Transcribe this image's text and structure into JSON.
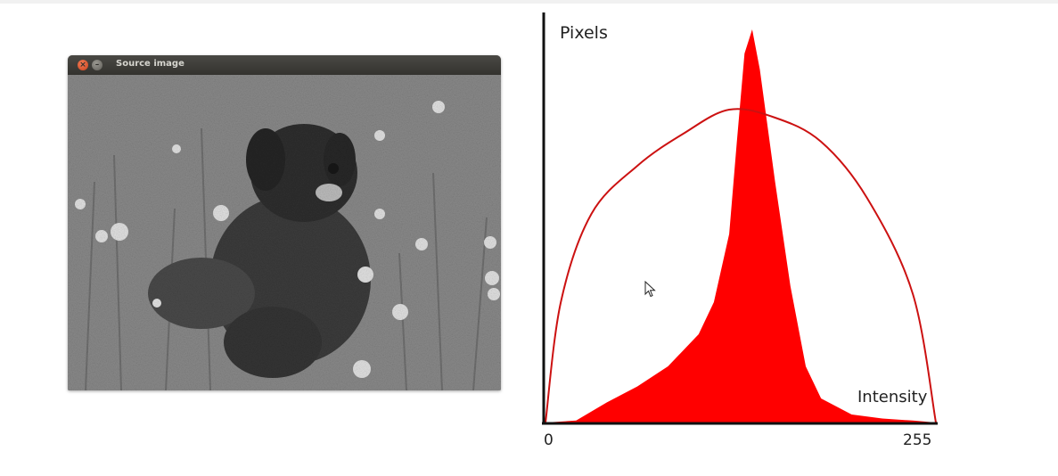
{
  "source_window": {
    "title": "Source image",
    "buttons": [
      "close-icon",
      "minimize-icon"
    ],
    "image_description_icon": "dog-photo"
  },
  "histogram": {
    "y_axis_label": "Pixels",
    "x_axis_label": "Intensity",
    "x_min_label": "0",
    "x_max_label": "255",
    "fill_color": "#ff0000",
    "curve_color": "#cc1111",
    "axis_color": "#111111"
  },
  "chart_data": {
    "type": "area",
    "xlabel": "Intensity",
    "ylabel": "Pixels",
    "xlim": [
      0,
      255
    ],
    "x": [
      0,
      20,
      40,
      60,
      80,
      100,
      110,
      120,
      125,
      130,
      135,
      140,
      150,
      160,
      170,
      180,
      200,
      220,
      240,
      255
    ],
    "series": [
      {
        "values": [
          0,
          0.5,
          5,
          9,
          14,
          22,
          30,
          47,
          70,
          92,
          98,
          88,
          60,
          34,
          14,
          6,
          2,
          1,
          0.5,
          0
        ]
      }
    ],
    "overlay_curve": {
      "x": [
        0,
        10,
        30,
        60,
        90,
        120,
        150,
        180,
        210,
        240,
        255
      ],
      "values": [
        0,
        30,
        52,
        64,
        72,
        78,
        76,
        70,
        56,
        32,
        0
      ]
    }
  }
}
